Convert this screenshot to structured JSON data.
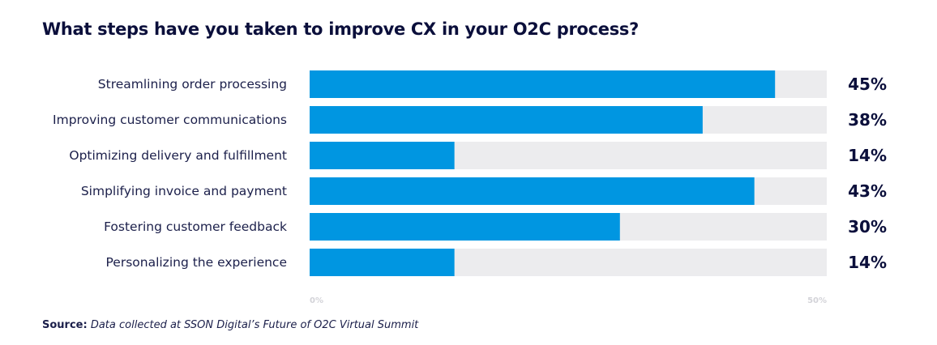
{
  "chart_data": {
    "type": "bar",
    "orientation": "horizontal",
    "title": "What steps have you taken to improve CX in your O2C process?",
    "categories": [
      "Streamlining order processing",
      "Improving customer communications",
      "Optimizing delivery and fulfillment",
      "Simplifying invoice and payment",
      "Fostering customer feedback",
      "Personalizing the experience"
    ],
    "values": [
      45,
      38,
      14,
      43,
      30,
      14
    ],
    "value_labels": [
      "45%",
      "38%",
      "14%",
      "43%",
      "30%",
      "14%"
    ],
    "xlim": [
      0,
      50
    ],
    "xticks": [
      "0%",
      "50%"
    ],
    "grid": false,
    "legend": "none",
    "colors": {
      "bar": "#0096e1",
      "track": "#ececee",
      "text": "#0b0f3b",
      "tick": "#d3d3d8"
    }
  },
  "source": {
    "label": "Source:",
    "text": "Data collected at SSON Digital’s Future of O2C Virtual Summit"
  }
}
